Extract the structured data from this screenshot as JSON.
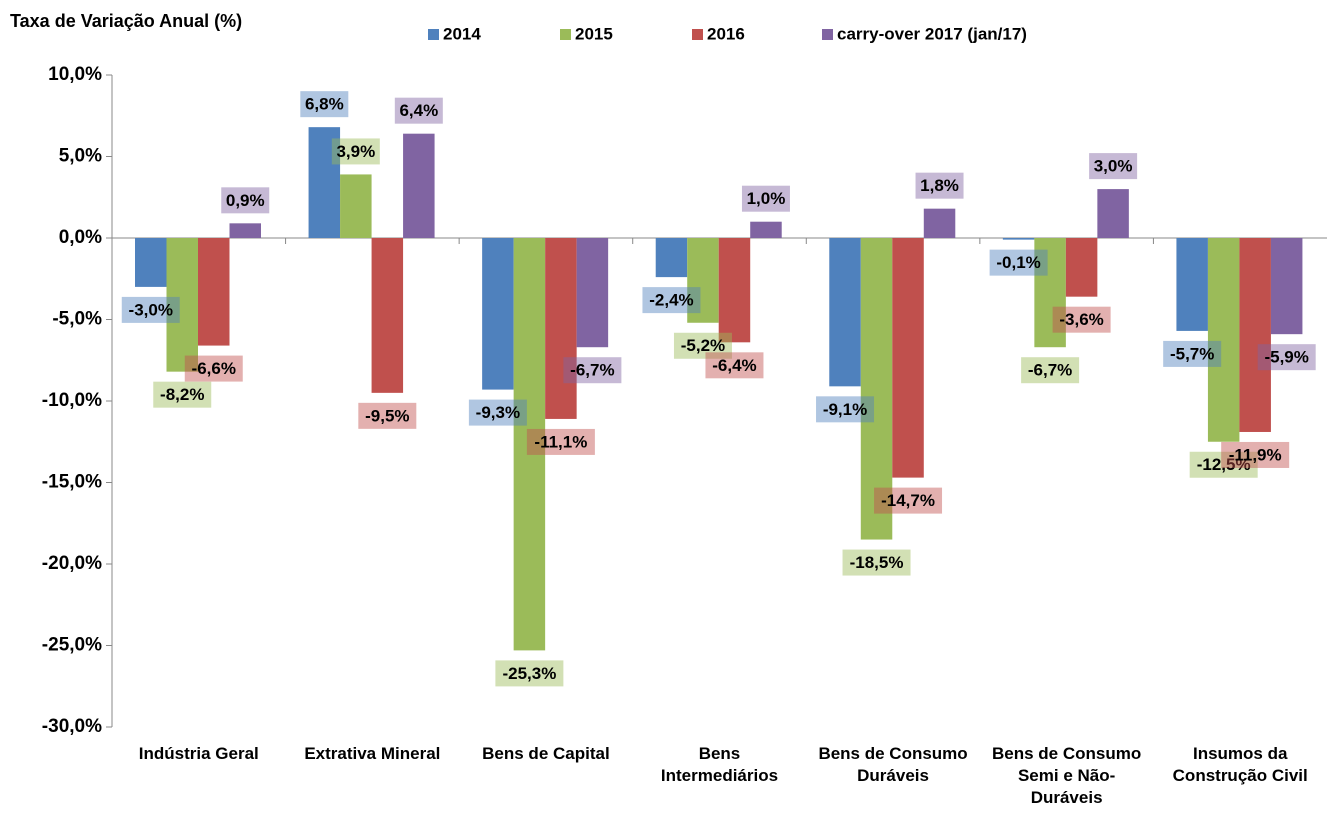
{
  "chart_data": {
    "type": "bar",
    "y_axis_title": "Taxa de Variação Anual (%)",
    "categories": [
      "Indústria Geral",
      "Extrativa Mineral",
      "Bens de Capital",
      "Bens Intermediários",
      "Bens de Consumo Duráveis",
      "Bens de Consumo Semi e Não-Duráveis",
      "Insumos da Construção Civil"
    ],
    "series": [
      {
        "name": "2014",
        "color": "#4f81bd",
        "values": [
          -3.0,
          6.8,
          -9.3,
          -2.4,
          -9.1,
          -0.1,
          -5.7
        ],
        "value_labels": [
          "-3,0%",
          "6,8%",
          "-9,3%",
          "-2,4%",
          "-9,1%",
          "-0,1%",
          "-5,7%"
        ]
      },
      {
        "name": "2015",
        "color": "#9bbb59",
        "values": [
          -8.2,
          3.9,
          -25.3,
          -5.2,
          -18.5,
          -6.7,
          -12.5
        ],
        "value_labels": [
          "-8,2%",
          "3,9%",
          "-25,3%",
          "-5,2%",
          "-18,5%",
          "-6,7%",
          "-12,5%"
        ]
      },
      {
        "name": "2016",
        "color": "#c0504d",
        "values": [
          -6.6,
          -9.5,
          -11.1,
          -6.4,
          -14.7,
          -3.6,
          -11.9
        ],
        "value_labels": [
          "-6,6%",
          "-9,5%",
          "-11,1%",
          "-6,4%",
          "-14,7%",
          "-3,6%",
          "-11,9%"
        ]
      },
      {
        "name": "carry-over 2017 (jan/17)",
        "color": "#8064a2",
        "values": [
          0.9,
          6.4,
          -6.7,
          1.0,
          1.8,
          3.0,
          -5.9
        ],
        "value_labels": [
          "0,9%",
          "6,4%",
          "-6,7%",
          "1,0%",
          "1,8%",
          "3,0%",
          "-5,9%"
        ]
      }
    ],
    "ylim": [
      -30,
      10
    ],
    "yticks": [
      {
        "value": -30,
        "label": "-30,0%"
      },
      {
        "value": -25,
        "label": "-25,0%"
      },
      {
        "value": -20,
        "label": "-20,0%"
      },
      {
        "value": -15,
        "label": "-15,0%"
      },
      {
        "value": -10,
        "label": "-10,0%"
      },
      {
        "value": -5,
        "label": "-5,0%"
      },
      {
        "value": 0,
        "label": "0,0%"
      },
      {
        "value": 5,
        "label": "5,0%"
      },
      {
        "value": 10,
        "label": "10,0%"
      }
    ],
    "legend": "top"
  }
}
